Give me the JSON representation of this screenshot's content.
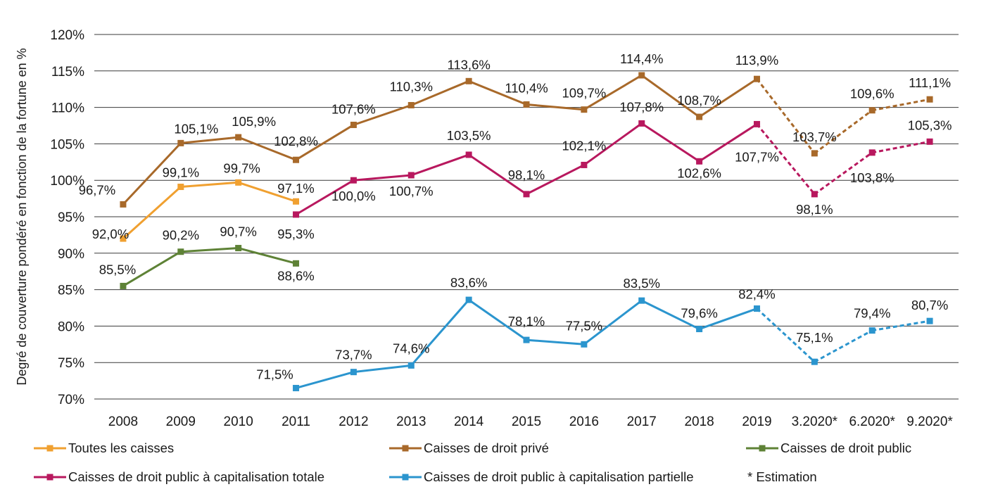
{
  "chart_data": {
    "type": "line",
    "ylabel": "Degré de couverture pondéré en fonction de la fortune en %",
    "ylim": [
      70,
      120
    ],
    "y_ticks": [
      "70%",
      "75%",
      "80%",
      "85%",
      "90%",
      "95%",
      "100%",
      "105%",
      "110%",
      "115%",
      "120%"
    ],
    "categories": [
      "2008",
      "2009",
      "2010",
      "2011",
      "2012",
      "2013",
      "2014",
      "2015",
      "2016",
      "2017",
      "2018",
      "2019",
      "3.2020*",
      "6.2020*",
      "9.2020*"
    ],
    "estimated_from_index": 11,
    "grid": "horizontal",
    "legend_position": "bottom",
    "series": [
      {
        "name": "Toutes les caisses",
        "color": "#F0A030",
        "values": [
          92.0,
          99.1,
          99.7,
          97.1,
          null,
          null,
          null,
          null,
          null,
          null,
          null,
          null,
          null,
          null,
          null
        ],
        "labels": [
          "92,0%",
          "99,1%",
          "99,7%",
          "97,1%",
          null,
          null,
          null,
          null,
          null,
          null,
          null,
          null,
          null,
          null,
          null
        ]
      },
      {
        "name": "Caisses de droit privé",
        "color": "#A8692A",
        "values": [
          96.7,
          105.1,
          105.9,
          102.8,
          107.6,
          110.3,
          113.6,
          110.4,
          109.7,
          114.4,
          108.7,
          113.9,
          103.7,
          109.6,
          111.1
        ],
        "labels": [
          "96,7%",
          "105,1%",
          "105,9%",
          "102,8%",
          "107,6%",
          "110,3%",
          "113,6%",
          "110,4%",
          "109,7%",
          "114,4%",
          "108,7%",
          "113,9%",
          "103,7%",
          "109,6%",
          "111,1%"
        ]
      },
      {
        "name": "Caisses de droit public",
        "color": "#5E8236",
        "values": [
          85.5,
          90.2,
          90.7,
          88.6,
          null,
          null,
          null,
          null,
          null,
          null,
          null,
          null,
          null,
          null,
          null
        ],
        "labels": [
          "85,5%",
          "90,2%",
          "90,7%",
          "88,6%",
          null,
          null,
          null,
          null,
          null,
          null,
          null,
          null,
          null,
          null,
          null
        ]
      },
      {
        "name": "Caisses de droit public à capitalisation totale",
        "color": "#B8185E",
        "values": [
          null,
          null,
          null,
          95.3,
          100.0,
          100.7,
          103.5,
          98.1,
          102.1,
          107.8,
          102.6,
          107.7,
          98.1,
          103.8,
          105.3
        ],
        "labels": [
          null,
          null,
          null,
          "95,3%",
          "100,0%",
          "100,7%",
          "103,5%",
          "98,1%",
          "102,1%",
          "107,8%",
          "102,6%",
          "107,7%",
          "98,1%",
          "103,8%",
          "105,3%"
        ]
      },
      {
        "name": "Caisses de droit public à capitalisation partielle",
        "color": "#2B95CE",
        "values": [
          null,
          null,
          null,
          71.5,
          73.7,
          74.6,
          83.6,
          78.1,
          77.5,
          83.5,
          79.6,
          82.4,
          75.1,
          79.4,
          80.7
        ],
        "labels": [
          null,
          null,
          null,
          "71,5%",
          "73,7%",
          "74,6%",
          "83,6%",
          "78,1%",
          "77,5%",
          "83,5%",
          "79,6%",
          "82,4%",
          "75,1%",
          "79,4%",
          "80,7%"
        ]
      }
    ],
    "legend_note": "* Estimation"
  }
}
